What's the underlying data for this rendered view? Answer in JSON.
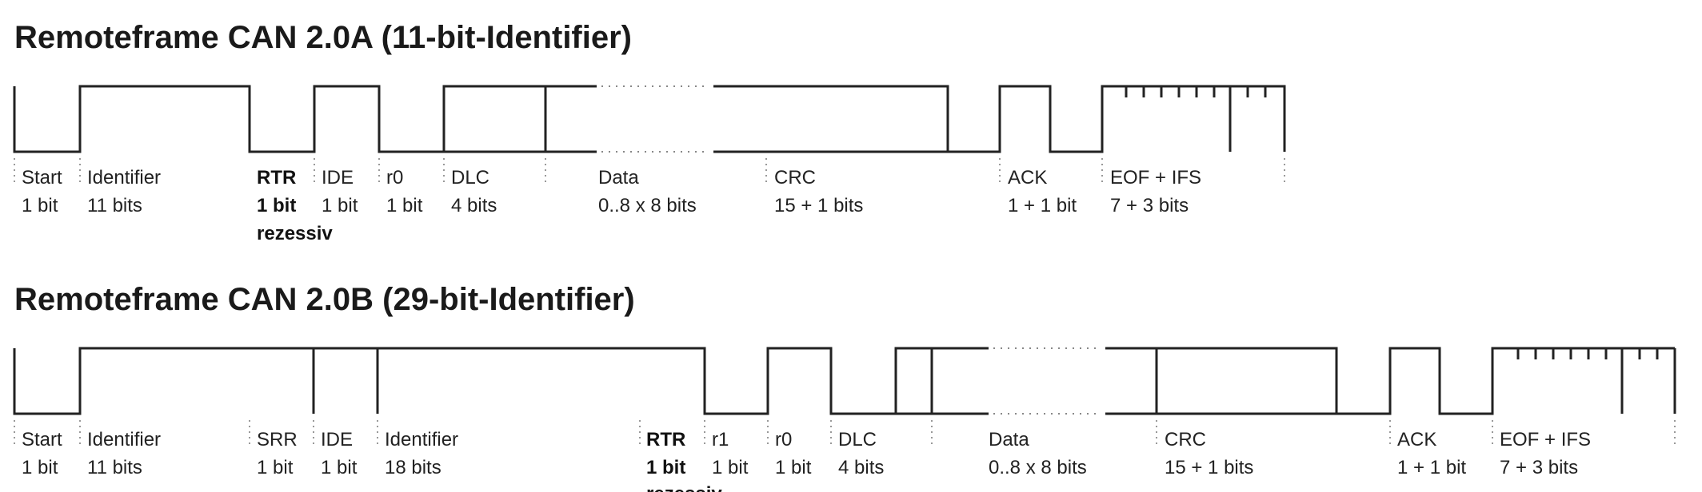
{
  "frames": [
    {
      "id": "a",
      "title": "Remoteframe CAN 2.0A (11-bit-Identifier)",
      "fields": [
        {
          "key": "start",
          "name": "Start",
          "size": "1 bit"
        },
        {
          "key": "identifier",
          "name": "Identifier",
          "size": "11 bits"
        },
        {
          "key": "rtr",
          "name": "RTR",
          "size": "1 bit",
          "note": "rezessiv",
          "bold": true
        },
        {
          "key": "ide",
          "name": "IDE",
          "size": "1 bit"
        },
        {
          "key": "r0",
          "name": "r0",
          "size": "1 bit"
        },
        {
          "key": "dlc",
          "name": "DLC",
          "size": "4 bits"
        },
        {
          "key": "data",
          "name": "Data",
          "size": "0..8 x 8 bits"
        },
        {
          "key": "crc",
          "name": "CRC",
          "size": "15 + 1 bits"
        },
        {
          "key": "ack",
          "name": "ACK",
          "size": "1 + 1 bit"
        },
        {
          "key": "eof",
          "name": "EOF + IFS",
          "size": "7 + 3 bits"
        }
      ]
    },
    {
      "id": "b",
      "title": "Remoteframe CAN 2.0B (29-bit-Identifier)",
      "fields": [
        {
          "key": "start",
          "name": "Start",
          "size": "1 bit"
        },
        {
          "key": "identifier",
          "name": "Identifier",
          "size": "11 bits"
        },
        {
          "key": "srr",
          "name": "SRR",
          "size": "1 bit"
        },
        {
          "key": "ide",
          "name": "IDE",
          "size": "1 bit"
        },
        {
          "key": "identifier-ext",
          "name": "Identifier",
          "size": "18 bits"
        },
        {
          "key": "rtr",
          "name": "RTR",
          "size": "1 bit",
          "note": "rezessiv",
          "bold": true
        },
        {
          "key": "r1",
          "name": "r1",
          "size": "1 bit"
        },
        {
          "key": "r0",
          "name": "r0",
          "size": "1 bit"
        },
        {
          "key": "dlc",
          "name": "DLC",
          "size": "4 bits"
        },
        {
          "key": "data",
          "name": "Data",
          "size": "0..8 x 8 bits"
        },
        {
          "key": "crc",
          "name": "CRC",
          "size": "15 + 1 bits"
        },
        {
          "key": "ack",
          "name": "ACK",
          "size": "1 + 1 bit"
        },
        {
          "key": "eof",
          "name": "EOF + IFS",
          "size": "7 + 3 bits"
        }
      ]
    }
  ]
}
